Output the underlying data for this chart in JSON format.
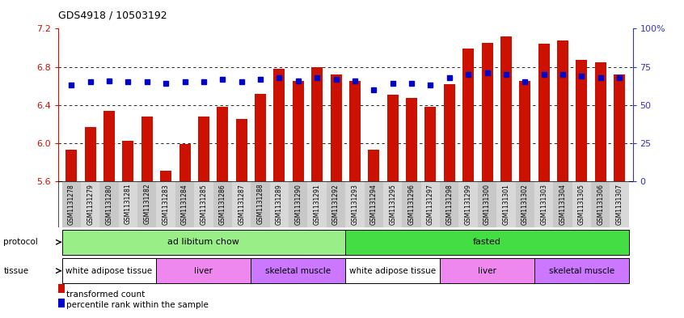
{
  "title": "GDS4918 / 10503192",
  "samples": [
    "GSM1131278",
    "GSM1131279",
    "GSM1131280",
    "GSM1131281",
    "GSM1131282",
    "GSM1131283",
    "GSM1131284",
    "GSM1131285",
    "GSM1131286",
    "GSM1131287",
    "GSM1131288",
    "GSM1131289",
    "GSM1131290",
    "GSM1131291",
    "GSM1131292",
    "GSM1131293",
    "GSM1131294",
    "GSM1131295",
    "GSM1131296",
    "GSM1131297",
    "GSM1131298",
    "GSM1131299",
    "GSM1131300",
    "GSM1131301",
    "GSM1131302",
    "GSM1131303",
    "GSM1131304",
    "GSM1131305",
    "GSM1131306",
    "GSM1131307"
  ],
  "bar_values": [
    5.93,
    6.17,
    6.34,
    6.02,
    6.28,
    5.71,
    5.99,
    6.28,
    6.38,
    6.25,
    6.52,
    6.78,
    6.65,
    6.8,
    6.72,
    6.65,
    5.93,
    6.51,
    6.47,
    6.38,
    6.62,
    6.99,
    7.05,
    7.12,
    6.65,
    7.04,
    7.08,
    6.87,
    6.85,
    6.72
  ],
  "percentile_values": [
    63,
    65,
    66,
    65,
    65,
    64,
    65,
    65,
    67,
    65,
    67,
    68,
    66,
    68,
    67,
    66,
    60,
    64,
    64,
    63,
    68,
    70,
    71,
    70,
    65,
    70,
    70,
    69,
    68,
    68
  ],
  "ylim_left": [
    5.6,
    7.2
  ],
  "ylim_right": [
    0,
    100
  ],
  "yticks_left": [
    5.6,
    6.0,
    6.4,
    6.8,
    7.2
  ],
  "yticks_right": [
    0,
    25,
    50,
    75,
    100
  ],
  "ytick_labels_right": [
    "0",
    "25",
    "50",
    "75",
    "100%"
  ],
  "bar_color": "#cc1100",
  "dot_color": "#0000cc",
  "protocol_groups": [
    {
      "label": "ad libitum chow",
      "start": 0,
      "end": 15,
      "color": "#99ee88"
    },
    {
      "label": "fasted",
      "start": 15,
      "end": 30,
      "color": "#44dd44"
    }
  ],
  "tissue_groups": [
    {
      "label": "white adipose tissue",
      "start": 0,
      "end": 5,
      "color": "#ffffff"
    },
    {
      "label": "liver",
      "start": 5,
      "end": 10,
      "color": "#ee88ee"
    },
    {
      "label": "skeletal muscle",
      "start": 10,
      "end": 15,
      "color": "#cc77ff"
    },
    {
      "label": "white adipose tissue",
      "start": 15,
      "end": 20,
      "color": "#ffffff"
    },
    {
      "label": "liver",
      "start": 20,
      "end": 25,
      "color": "#ee88ee"
    },
    {
      "label": "skeletal muscle",
      "start": 25,
      "end": 30,
      "color": "#cc77ff"
    }
  ],
  "legend_labels": [
    "transformed count",
    "percentile rank within the sample"
  ],
  "legend_colors": [
    "#cc1100",
    "#0000cc"
  ],
  "tick_bg_even": "#c8c8c8",
  "tick_bg_odd": "#d8d8d8"
}
